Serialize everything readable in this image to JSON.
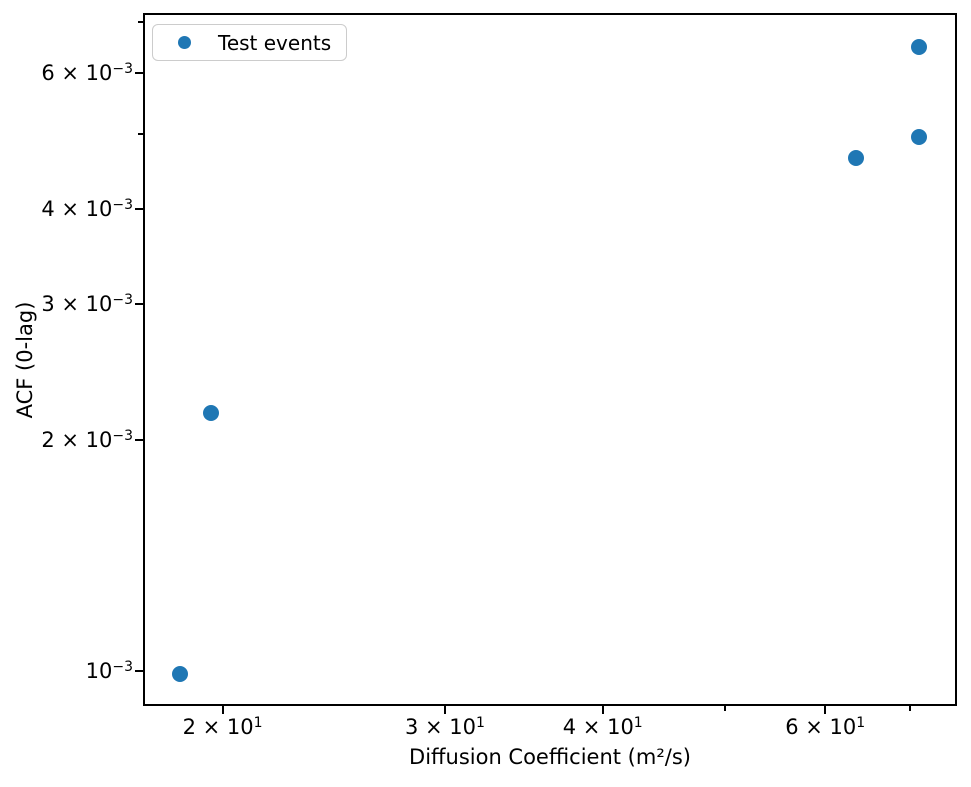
{
  "chart": {
    "xlabel": "Diffusion Coefficient (m²/s)",
    "ylabel": "ACF (0-lag)",
    "legend_label": "Test events"
  },
  "chart_data": {
    "type": "scatter",
    "title": "",
    "xlabel": "Diffusion Coefficient (m²/s)",
    "ylabel": "ACF (0-lag)",
    "x_scale": "log",
    "y_scale": "log",
    "xlim": [
      17.3,
      76.3
    ],
    "ylim": [
      0.0009,
      0.00719
    ],
    "grid": false,
    "legend_position": "upper left",
    "marker_color": "#1f77b4",
    "series": [
      {
        "name": "Test events",
        "points": [
          [
            18.5,
            0.00099
          ],
          [
            19.6,
            0.00217
          ],
          [
            63.5,
            0.00466
          ],
          [
            71.2,
            0.00495
          ],
          [
            71.2,
            0.0065
          ]
        ]
      }
    ],
    "x_ticks": [
      {
        "v": 20,
        "label": "2 × 10¹",
        "base": "2 × 10",
        "exp": "1",
        "major": true
      },
      {
        "v": 30,
        "label": "3 × 10¹",
        "base": "3 × 10",
        "exp": "1",
        "major": true
      },
      {
        "v": 40,
        "label": "4 × 10¹",
        "base": "4 × 10",
        "exp": "1",
        "major": true
      },
      {
        "v": 50,
        "label": "",
        "base": "",
        "exp": "",
        "major": false
      },
      {
        "v": 60,
        "label": "6 × 10¹",
        "base": "6 × 10",
        "exp": "1",
        "major": true
      },
      {
        "v": 70,
        "label": "",
        "base": "",
        "exp": "",
        "major": false
      }
    ],
    "y_ticks": [
      {
        "v": 0.001,
        "label": "10⁻³",
        "base": "10",
        "exp": "−3",
        "major": true
      },
      {
        "v": 0.002,
        "label": "2 × 10⁻³",
        "base": "2 × 10",
        "exp": "−3",
        "major": true
      },
      {
        "v": 0.003,
        "label": "3 × 10⁻³",
        "base": "3 × 10",
        "exp": "−3",
        "major": true
      },
      {
        "v": 0.004,
        "label": "4 × 10⁻³",
        "base": "4 × 10",
        "exp": "−3",
        "major": true
      },
      {
        "v": 0.005,
        "label": "",
        "base": "",
        "exp": "",
        "major": false
      },
      {
        "v": 0.006,
        "label": "6 × 10⁻³",
        "base": "6 × 10",
        "exp": "−3",
        "major": true
      },
      {
        "v": 0.007,
        "label": "",
        "base": "",
        "exp": "",
        "major": false
      }
    ]
  }
}
